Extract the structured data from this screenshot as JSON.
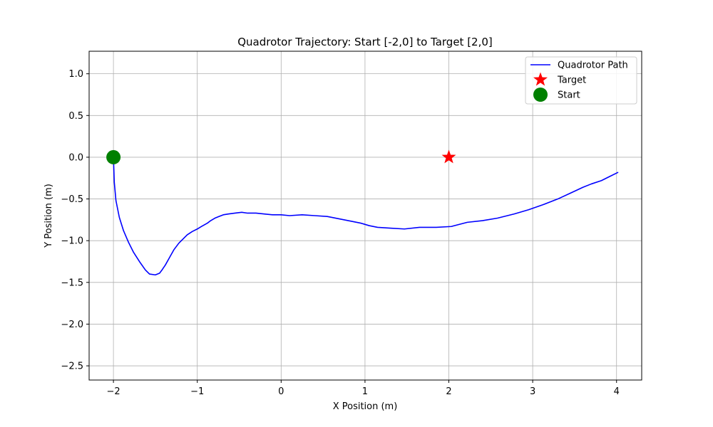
{
  "chart_data": {
    "type": "line",
    "title": "Quadrotor Trajectory: Start [-2,0] to Target [2,0]",
    "xlabel": "X Position (m)",
    "ylabel": "Y Position (m)",
    "xlim": [
      -2.29,
      4.3
    ],
    "ylim": [
      -2.67,
      1.27
    ],
    "xticks": [
      -2,
      -1,
      0,
      1,
      2,
      3,
      4
    ],
    "xtick_labels": [
      "−2",
      "−1",
      "0",
      "1",
      "2",
      "3",
      "4"
    ],
    "yticks": [
      1.0,
      0.5,
      0.0,
      -0.5,
      -1.0,
      -1.5,
      -2.0,
      -2.5
    ],
    "ytick_labels": [
      "1.0",
      "0.5",
      "0.0",
      "−0.5",
      "−1.0",
      "−1.5",
      "−2.0",
      "−2.5"
    ],
    "grid": true,
    "legend_position": "top-right",
    "series": [
      {
        "name": "Quadrotor Path",
        "kind": "line",
        "color": "#0000ff",
        "x": [
          -2.0,
          -1.99,
          -1.97,
          -1.93,
          -1.88,
          -1.82,
          -1.76,
          -1.69,
          -1.62,
          -1.57,
          -1.5,
          -1.45,
          -1.42,
          -1.38,
          -1.33,
          -1.28,
          -1.22,
          -1.17,
          -1.12,
          -1.06,
          -1.0,
          -0.95,
          -0.88,
          -0.84,
          -0.79,
          -0.74,
          -0.69,
          -0.63,
          -0.55,
          -0.47,
          -0.4,
          -0.3,
          -0.2,
          -0.1,
          0.0,
          0.1,
          0.25,
          0.4,
          0.55,
          0.7,
          0.85,
          0.95,
          1.05,
          1.15,
          1.3,
          1.47,
          1.65,
          1.85,
          2.03,
          2.22,
          2.4,
          2.58,
          2.78,
          2.95,
          3.12,
          3.3,
          3.45,
          3.6,
          3.7,
          3.82,
          3.92,
          4.02
        ],
        "y": [
          0.0,
          -0.3,
          -0.52,
          -0.72,
          -0.88,
          -1.02,
          -1.14,
          -1.25,
          -1.35,
          -1.4,
          -1.41,
          -1.39,
          -1.35,
          -1.29,
          -1.2,
          -1.11,
          -1.03,
          -0.98,
          -0.93,
          -0.89,
          -0.86,
          -0.83,
          -0.79,
          -0.76,
          -0.73,
          -0.71,
          -0.69,
          -0.68,
          -0.67,
          -0.66,
          -0.67,
          -0.67,
          -0.68,
          -0.69,
          -0.69,
          -0.7,
          -0.69,
          -0.7,
          -0.71,
          -0.74,
          -0.77,
          -0.79,
          -0.82,
          -0.84,
          -0.85,
          -0.86,
          -0.84,
          -0.84,
          -0.83,
          -0.78,
          -0.76,
          -0.73,
          -0.68,
          -0.63,
          -0.57,
          -0.5,
          -0.43,
          -0.36,
          -0.32,
          -0.28,
          -0.23,
          -0.18
        ]
      },
      {
        "name": "Target",
        "kind": "marker",
        "marker": "star",
        "color": "#ff0000",
        "x": [
          2.0
        ],
        "y": [
          0.0
        ]
      },
      {
        "name": "Start",
        "kind": "marker",
        "marker": "circle",
        "color": "#008000",
        "x": [
          -2.0
        ],
        "y": [
          0.0
        ]
      }
    ]
  }
}
